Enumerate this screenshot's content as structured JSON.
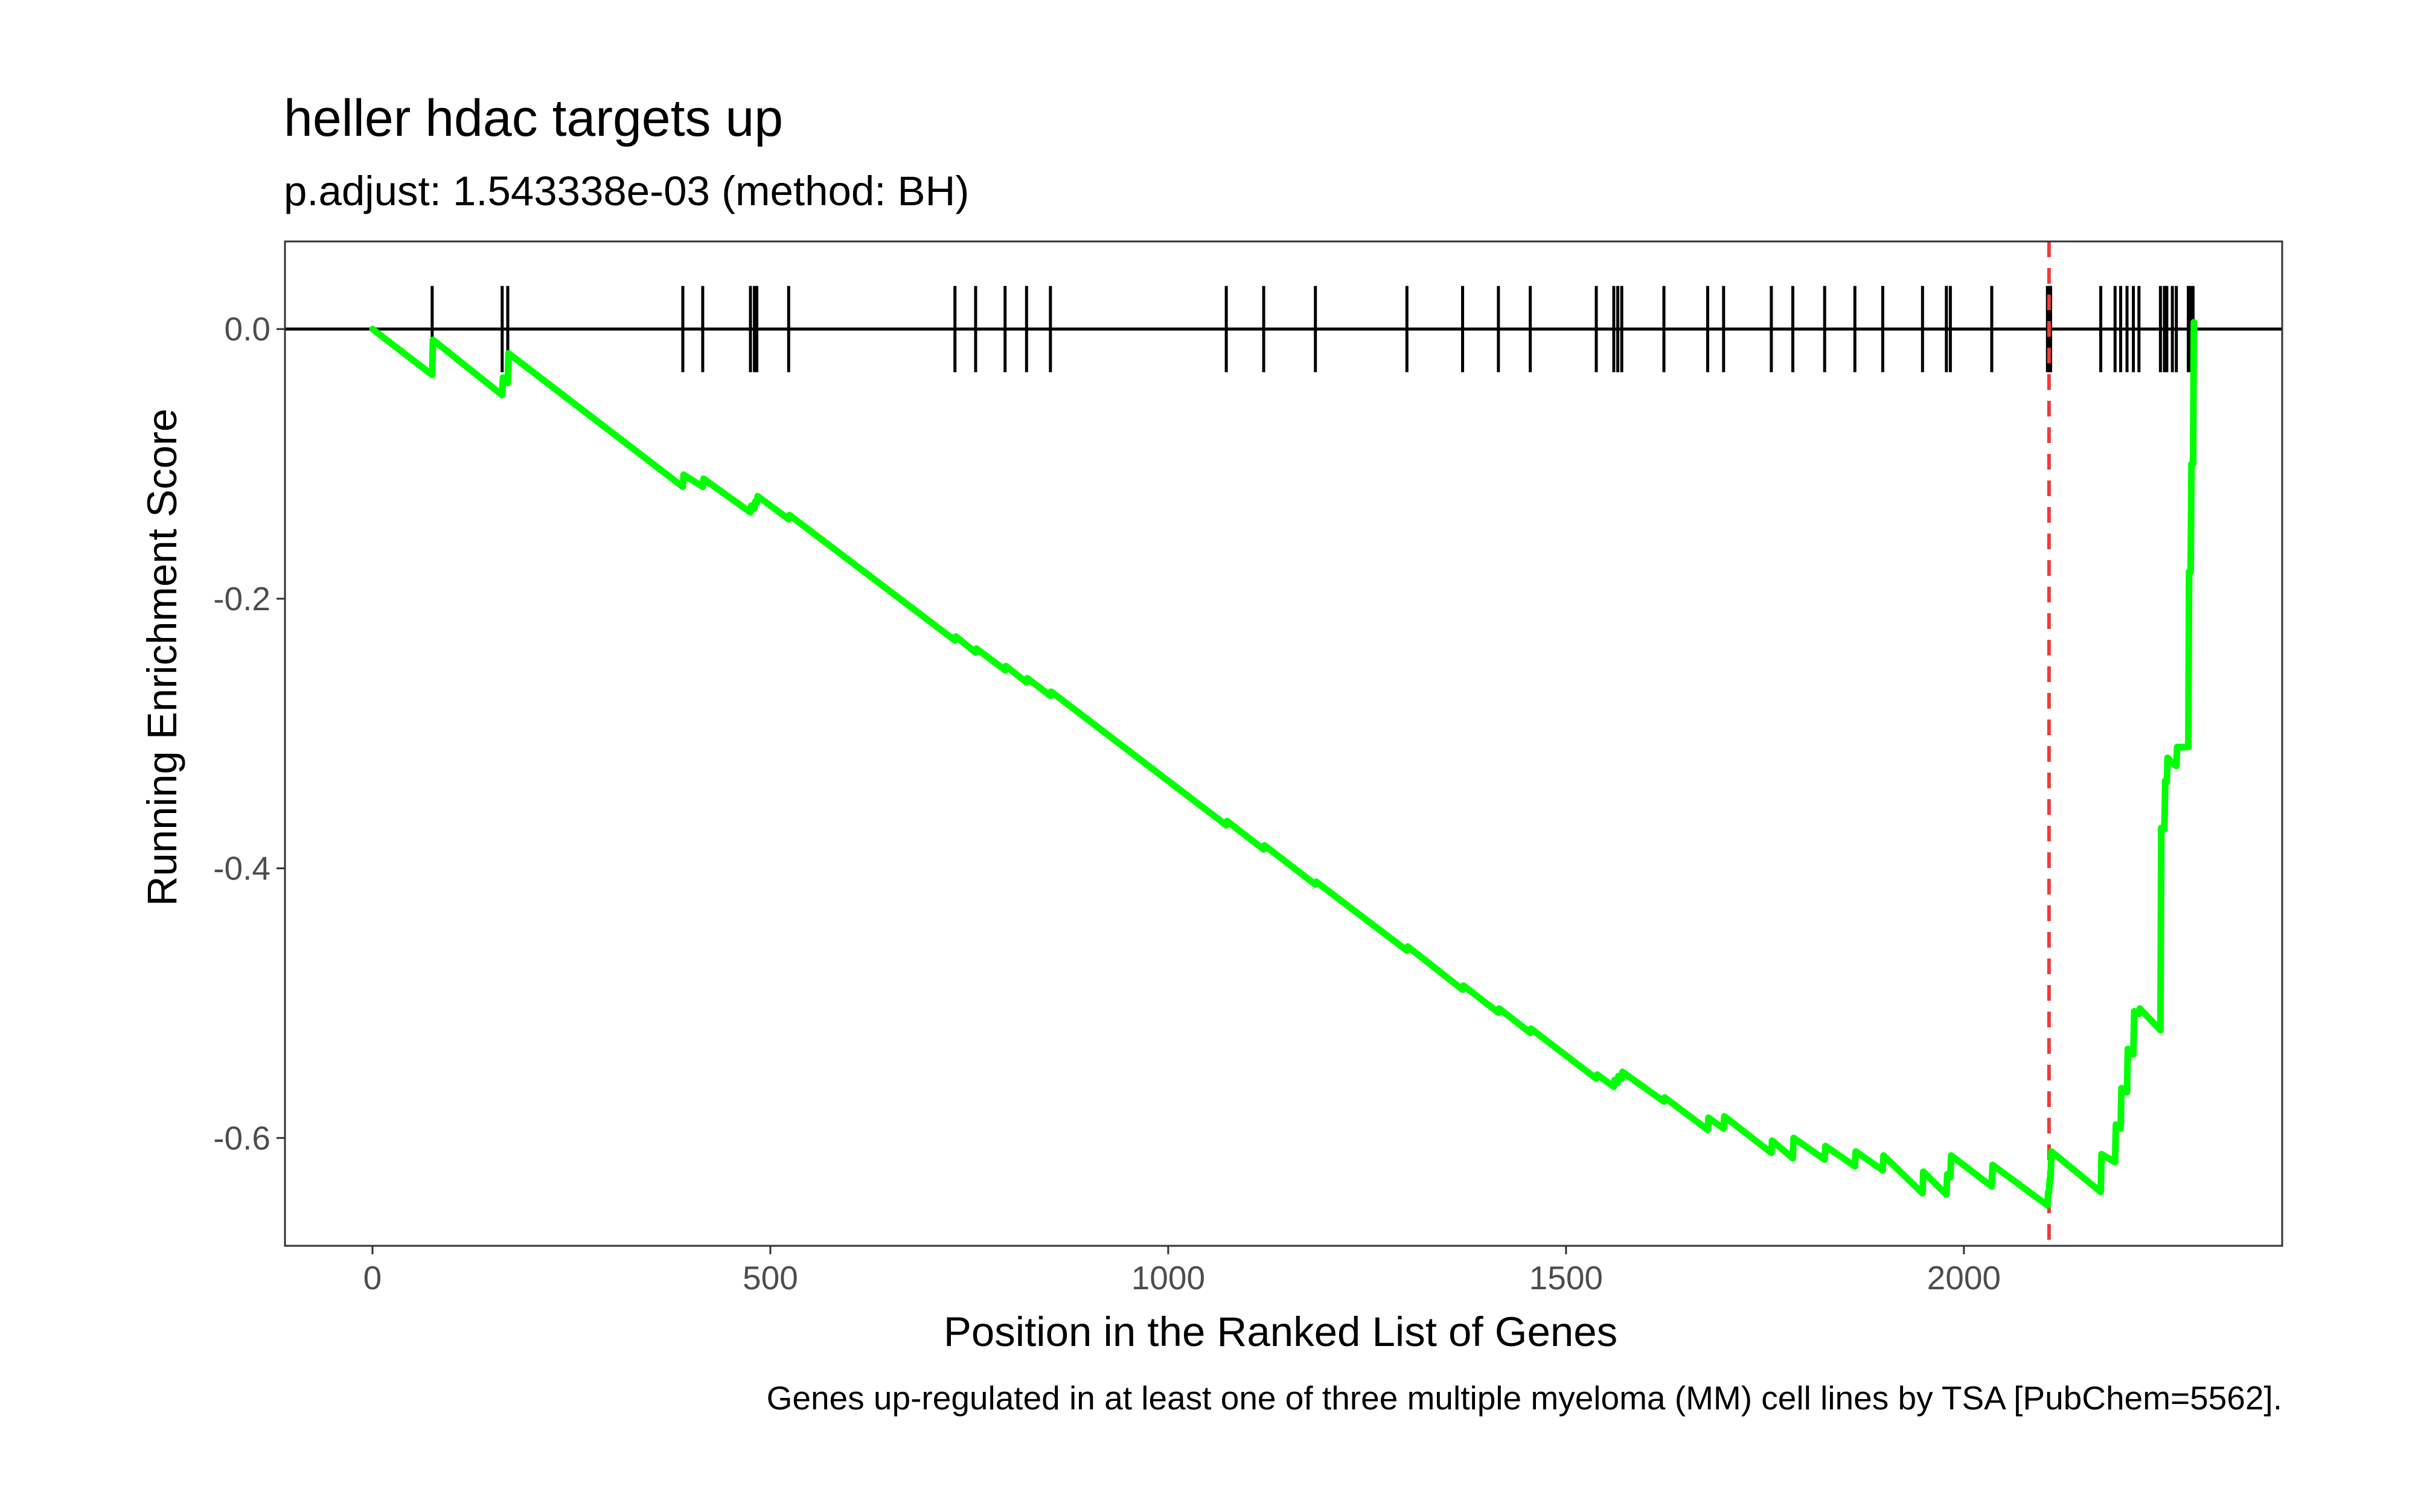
{
  "chart_data": {
    "type": "line",
    "title": "heller hdac targets up",
    "subtitle": "p.adjust: 1.543338e-03 (method: BH)",
    "xlabel": "Position in the Ranked List of Genes",
    "ylabel": "Running Enrichment Score",
    "caption": "Genes up-regulated in at least one of three multiple myeloma (MM) cell lines by TSA [PubChem=5562].",
    "xlim": [
      -110,
      2400
    ],
    "ylim": [
      -0.68,
      0.065
    ],
    "x_ticks": [
      0,
      500,
      1000,
      1500,
      2000
    ],
    "y_ticks": [
      0.0,
      -0.2,
      -0.4,
      -0.6
    ],
    "x_tick_labels": [
      "0",
      "500",
      "1000",
      "1500",
      "2000"
    ],
    "y_tick_labels": [
      "0.0",
      "-0.2",
      "-0.4",
      "-0.6"
    ],
    "grid": false,
    "line_color": "#00ff00",
    "zero_line_color": "#000000",
    "hit_color": "#000000",
    "leading_edge_color": "#ee3b3b",
    "leading_edge_x": 2107,
    "zero_line_range": [
      0,
      2300
    ],
    "hits": [
      75,
      163,
      170,
      390,
      415,
      475,
      480,
      483,
      523,
      732,
      758,
      795,
      822,
      852,
      1073,
      1120,
      1185,
      1300,
      1370,
      1415,
      1455,
      1538,
      1560,
      1565,
      1570,
      1623,
      1678,
      1698,
      1758,
      1785,
      1825,
      1863,
      1898,
      1948,
      1978,
      1983,
      2035,
      2105,
      2107,
      2109,
      2172,
      2190,
      2197,
      2205,
      2213,
      2220,
      2247,
      2252,
      2255,
      2262,
      2267,
      2282,
      2285,
      2288
    ],
    "series": [
      {
        "x": [
          0,
          75,
          76,
          163,
          164,
          170,
          171,
          390,
          391,
          415,
          416,
          475,
          476,
          480,
          481,
          483,
          484,
          523,
          524,
          732,
          733,
          758,
          759,
          795,
          796,
          822,
          823,
          852,
          853,
          1073,
          1074,
          1120,
          1121,
          1185,
          1186,
          1300,
          1301,
          1370,
          1371,
          1415,
          1416,
          1455,
          1456,
          1538,
          1539,
          1560,
          1561,
          1565,
          1566,
          1570,
          1571,
          1623,
          1624,
          1678,
          1679,
          1698,
          1699,
          1758,
          1759,
          1785,
          1786,
          1825,
          1826,
          1863,
          1864,
          1898,
          1899,
          1948,
          1949,
          1978,
          1979,
          1983,
          1984,
          2035,
          2036,
          2105,
          2106,
          2107,
          2108,
          2109,
          2110,
          2172,
          2173,
          2190,
          2191,
          2197,
          2198,
          2205,
          2206,
          2213,
          2214,
          2220,
          2221,
          2247,
          2248,
          2252,
          2253,
          2255,
          2256,
          2262,
          2263,
          2267,
          2268,
          2282,
          2283,
          2285,
          2286,
          2288,
          2289
        ],
        "y": [
          0.0,
          -0.034,
          -0.008,
          -0.049,
          -0.036,
          -0.04,
          -0.018,
          -0.117,
          -0.108,
          -0.117,
          -0.111,
          -0.136,
          -0.131,
          -0.133,
          -0.128,
          -0.129,
          -0.124,
          -0.141,
          -0.138,
          -0.231,
          -0.228,
          -0.24,
          -0.237,
          -0.253,
          -0.25,
          -0.262,
          -0.259,
          -0.272,
          -0.269,
          -0.368,
          -0.365,
          -0.386,
          -0.383,
          -0.412,
          -0.41,
          -0.461,
          -0.458,
          -0.49,
          -0.487,
          -0.507,
          -0.504,
          -0.522,
          -0.519,
          -0.556,
          -0.553,
          -0.562,
          -0.557,
          -0.559,
          -0.554,
          -0.556,
          -0.551,
          -0.573,
          -0.57,
          -0.594,
          -0.585,
          -0.593,
          -0.584,
          -0.611,
          -0.602,
          -0.615,
          -0.6,
          -0.616,
          -0.606,
          -0.621,
          -0.61,
          -0.624,
          -0.613,
          -0.641,
          -0.625,
          -0.642,
          -0.627,
          -0.629,
          -0.613,
          -0.636,
          -0.62,
          -0.65,
          -0.64,
          -0.64,
          -0.63,
          -0.63,
          -0.61,
          -0.64,
          -0.612,
          -0.618,
          -0.59,
          -0.593,
          -0.563,
          -0.566,
          -0.534,
          -0.538,
          -0.506,
          -0.508,
          -0.504,
          -0.52,
          -0.37,
          -0.371,
          -0.335,
          -0.336,
          -0.318,
          -0.322,
          -0.322,
          -0.324,
          -0.31,
          -0.31,
          -0.18,
          -0.18,
          -0.1,
          -0.1,
          0.005
        ]
      }
    ]
  }
}
